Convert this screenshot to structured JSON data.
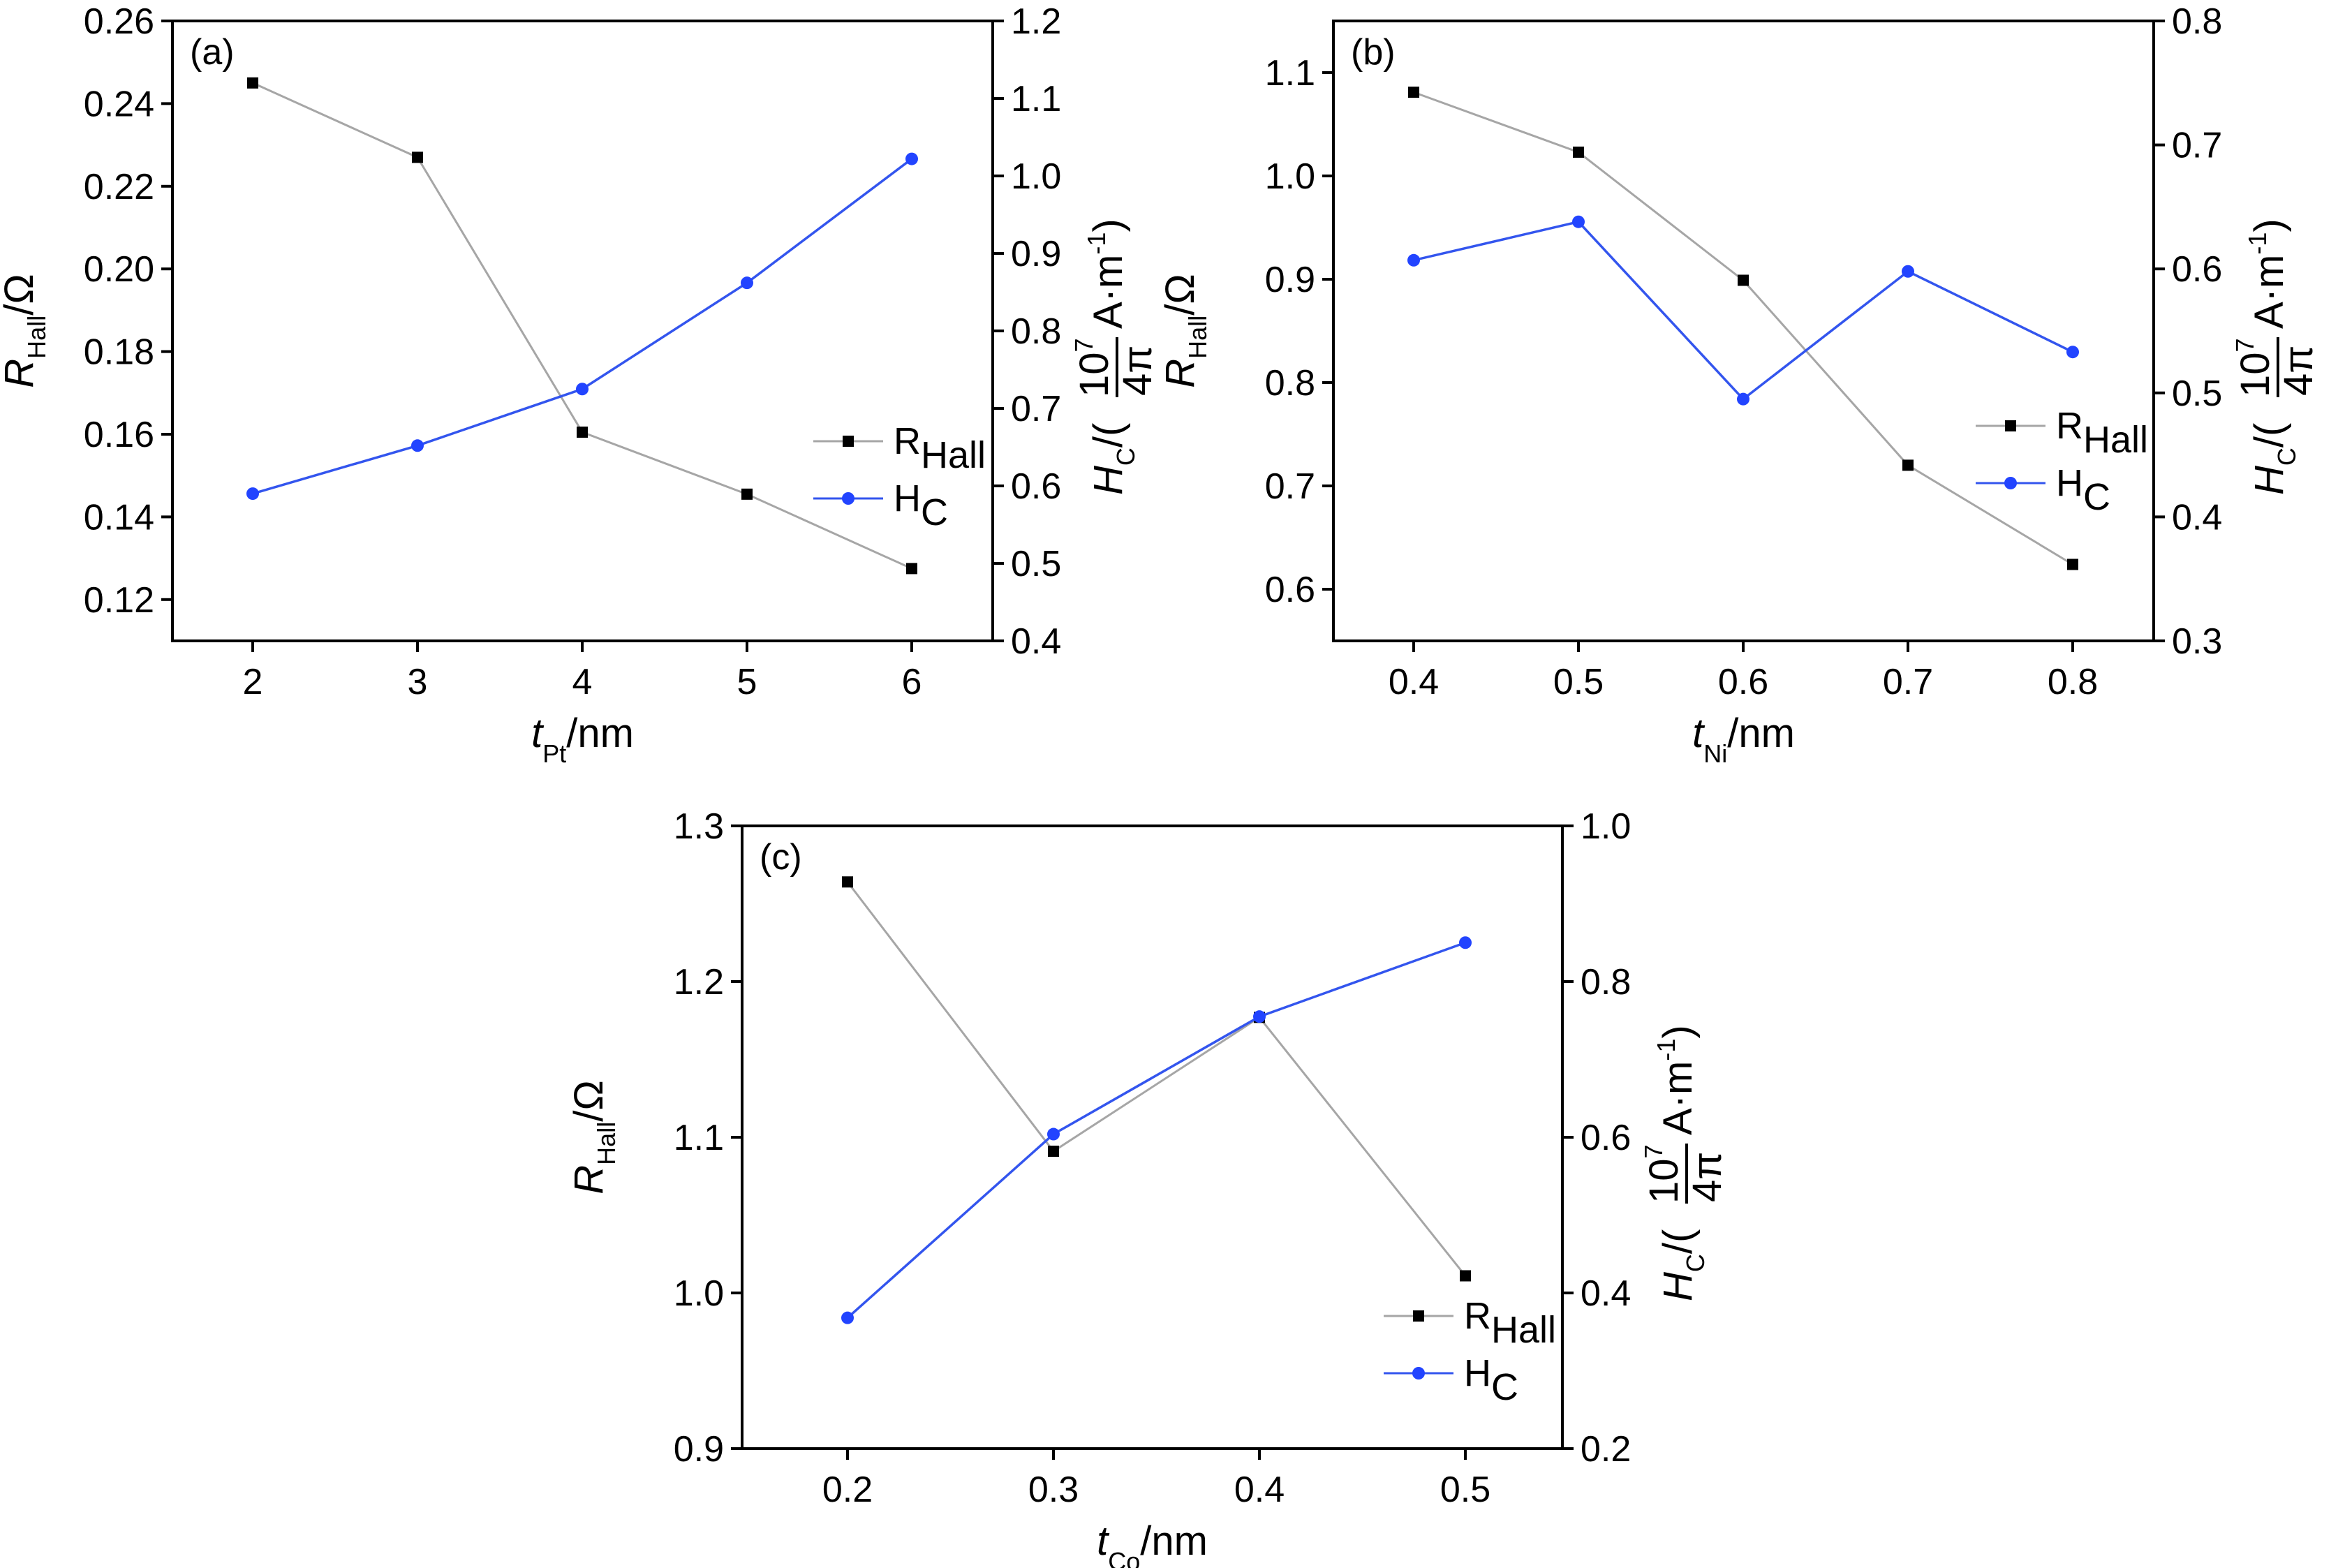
{
  "chart_data": [
    {
      "type": "line",
      "panel_label": "(a)",
      "x": [
        "2",
        "3",
        "4",
        "5",
        "6"
      ],
      "xlabel": {
        "main": "t",
        "sub": "Pt",
        "unit": "/nm"
      },
      "ylabel_left": {
        "main": "R",
        "sub": "Hall",
        "unit": "/Ω"
      },
      "ylabel_right": {
        "main": "H",
        "sub": "C",
        "unit_pre": "/(",
        "frac_num": "10",
        "frac_exp": "7",
        "frac_den": "4π",
        "unit_post": "A·m",
        "unit_exp": "-1",
        "close": ")"
      },
      "ylim_left": [
        0.11,
        0.26
      ],
      "ylim_right": [
        0.4,
        1.2
      ],
      "yticks_left": [
        "0.12",
        "0.14",
        "0.16",
        "0.18",
        "0.20",
        "0.22",
        "0.24",
        "0.26"
      ],
      "yticks_right": [
        "0.4",
        "0.5",
        "0.6",
        "0.7",
        "0.8",
        "0.9",
        "1.0",
        "1.1",
        "1.2"
      ],
      "series": [
        {
          "name": "R_Hall",
          "axis": "left",
          "color": "#a6a6a6",
          "marker": "square",
          "marker_color": "#000000",
          "values": [
            0.245,
            0.227,
            0.1605,
            0.1455,
            0.1275
          ]
        },
        {
          "name": "H_C",
          "axis": "right",
          "color": "#3355ee",
          "marker": "circle",
          "marker_color": "#2244ff",
          "values": [
            0.59,
            0.652,
            0.725,
            0.862,
            1.022
          ]
        }
      ],
      "legend": {
        "position": "center-right",
        "items": [
          {
            "main": "R",
            "sub": "Hall"
          },
          {
            "main": "H",
            "sub": "C"
          }
        ]
      }
    },
    {
      "type": "line",
      "panel_label": "(b)",
      "x": [
        "0.4",
        "0.5",
        "0.6",
        "0.7",
        "0.8"
      ],
      "xlabel": {
        "main": "t",
        "sub": "Ni",
        "unit": "/nm"
      },
      "ylabel_left": {
        "main": "R",
        "sub": "Hall",
        "unit": "/Ω"
      },
      "ylabel_right": {
        "main": "H",
        "sub": "C",
        "unit_pre": "/(",
        "frac_num": "10",
        "frac_exp": "7",
        "frac_den": "4π",
        "unit_post": "A·m",
        "unit_exp": "-1",
        "close": ")"
      },
      "ylim_left": [
        0.55,
        1.15
      ],
      "ylim_right": [
        0.3,
        0.8
      ],
      "yticks_left": [
        "0.6",
        "0.7",
        "0.8",
        "0.9",
        "1.0",
        "1.1"
      ],
      "yticks_right": [
        "0.3",
        "0.4",
        "0.5",
        "0.6",
        "0.7",
        "0.8"
      ],
      "series": [
        {
          "name": "R_Hall",
          "axis": "left",
          "color": "#a6a6a6",
          "marker": "square",
          "marker_color": "#000000",
          "values": [
            1.081,
            1.023,
            0.899,
            0.72,
            0.624
          ]
        },
        {
          "name": "H_C",
          "axis": "right",
          "color": "#3355ee",
          "marker": "circle",
          "marker_color": "#2244ff",
          "values": [
            0.607,
            0.638,
            0.495,
            0.598,
            0.533
          ]
        }
      ],
      "legend": {
        "position": "lower-right",
        "items": [
          {
            "main": "R",
            "sub": "Hall"
          },
          {
            "main": "H",
            "sub": "C"
          }
        ]
      }
    },
    {
      "type": "line",
      "panel_label": "(c)",
      "x": [
        "0.2",
        "0.3",
        "0.4",
        "0.5"
      ],
      "xlabel": {
        "main": "t",
        "sub": "Co",
        "unit": "/nm"
      },
      "ylabel_left": {
        "main": "R",
        "sub": "Hall",
        "unit": "/Ω"
      },
      "ylabel_right": {
        "main": "H",
        "sub": "C",
        "unit_pre": "/(",
        "frac_num": "10",
        "frac_exp": "7",
        "frac_den": "4π",
        "unit_post": "A·m",
        "unit_exp": "-1",
        "close": ")"
      },
      "ylim_left": [
        0.9,
        1.3
      ],
      "ylim_right": [
        0.2,
        1.0
      ],
      "yticks_left": [
        "0.9",
        "1.0",
        "1.1",
        "1.2",
        "1.3"
      ],
      "yticks_right": [
        "0.2",
        "0.4",
        "0.6",
        "0.8",
        "1.0"
      ],
      "series": [
        {
          "name": "R_Hall",
          "axis": "left",
          "color": "#a6a6a6",
          "marker": "square",
          "marker_color": "#000000",
          "values": [
            1.264,
            1.091,
            1.177,
            1.011
          ]
        },
        {
          "name": "H_C",
          "axis": "right",
          "color": "#3355ee",
          "marker": "circle",
          "marker_color": "#2244ff",
          "values": [
            0.368,
            0.604,
            0.755,
            0.85
          ]
        }
      ],
      "legend": {
        "position": "lower-right",
        "items": [
          {
            "main": "R",
            "sub": "Hall"
          },
          {
            "main": "H",
            "sub": "C"
          }
        ]
      }
    }
  ]
}
